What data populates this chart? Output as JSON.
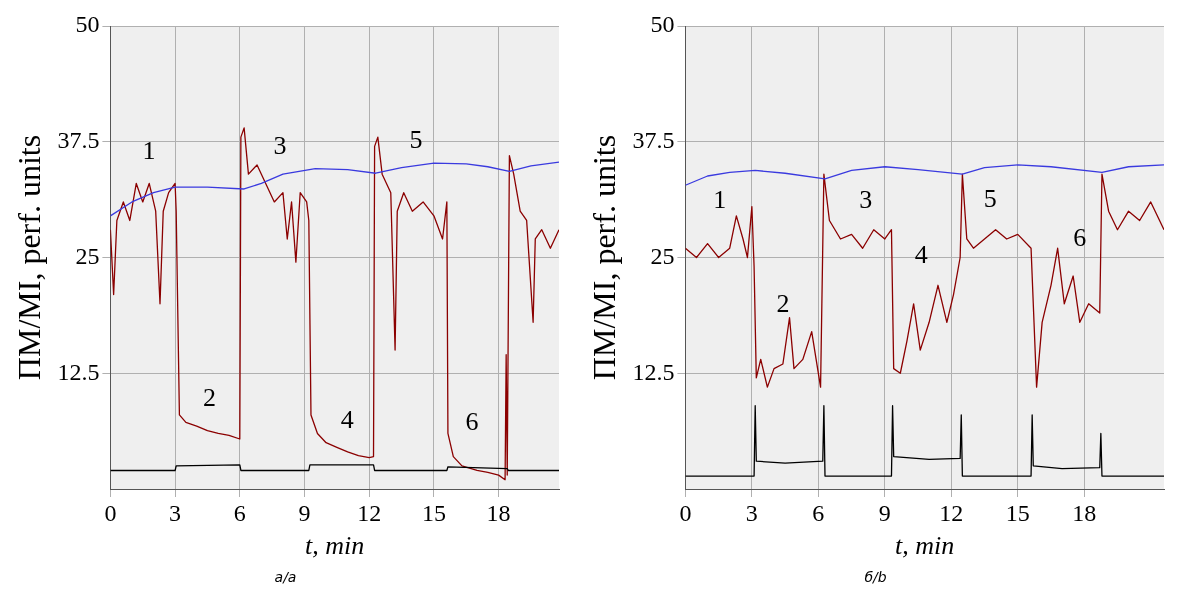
{
  "chart_data": [
    {
      "type": "line",
      "xlabel": "t, min",
      "ylabel": "ПМ/MI, perf. units",
      "xlim": [
        0,
        20.8
      ],
      "xticks": [
        0,
        3,
        6,
        9,
        12,
        15,
        18
      ],
      "ylim": [
        0,
        50
      ],
      "yticks": [
        12.5,
        25,
        37.5,
        50
      ],
      "grid": true,
      "legend": false,
      "series": [
        {
          "color": "#8b0000",
          "x": [
            0,
            0.15,
            0.3,
            0.6,
            0.9,
            1.2,
            1.5,
            1.8,
            2.1,
            2.3,
            2.45,
            2.7,
            3.0,
            3.05,
            3.2,
            3.5,
            4,
            4.5,
            5,
            5.5,
            6,
            6.05,
            6.2,
            6.4,
            6.8,
            7.2,
            7.6,
            8.0,
            8.2,
            8.4,
            8.6,
            8.8,
            9.1,
            9.2,
            9.3,
            9.6,
            10,
            10.5,
            11,
            11.5,
            12,
            12.2,
            12.25,
            12.4,
            12.6,
            13,
            13.2,
            13.3,
            13.6,
            14,
            14.5,
            15,
            15.4,
            15.6,
            15.65,
            15.9,
            16.3,
            17,
            17.5,
            18,
            18.3,
            18.35,
            18.4,
            18.5,
            18.7,
            19,
            19.3,
            19.6,
            19.7,
            20,
            20.4,
            20.8
          ],
          "values": [
            28,
            21,
            29,
            31,
            29,
            33,
            31,
            33,
            30,
            20,
            30,
            32,
            33,
            30,
            8,
            7.2,
            6.8,
            6.3,
            6,
            5.8,
            5.4,
            38,
            39,
            34,
            35,
            33,
            31,
            32,
            27,
            31,
            24.5,
            32,
            31,
            29,
            8,
            6,
            5,
            4.5,
            4,
            3.6,
            3.4,
            3.5,
            37,
            38,
            34,
            32,
            15,
            30,
            32,
            30,
            31,
            29.5,
            27,
            31,
            6,
            3.5,
            2.5,
            2,
            1.8,
            1.5,
            1,
            14.5,
            1.5,
            36,
            34,
            30,
            29,
            18,
            27,
            28,
            26,
            28
          ]
        },
        {
          "color": "#3a3adf",
          "x": [
            0,
            1,
            2,
            3,
            4.5,
            6.2,
            7,
            8,
            9.5,
            11,
            12.3,
            13.5,
            15,
            16.5,
            17.5,
            18.5,
            19.5,
            20.8
          ],
          "values": [
            29.5,
            31,
            32,
            32.6,
            32.6,
            32.4,
            33,
            34,
            34.6,
            34.5,
            34.1,
            34.7,
            35.2,
            35.1,
            34.8,
            34.3,
            34.9,
            35.3
          ]
        },
        {
          "color": "#000000",
          "x": [
            0,
            3,
            3.05,
            6,
            6.05,
            9.2,
            9.25,
            12.2,
            12.25,
            15.6,
            15.65,
            18.4,
            18.45,
            20.8
          ],
          "values": [
            2,
            2,
            2.5,
            2.6,
            2,
            2,
            2.6,
            2.6,
            2,
            2,
            2.4,
            2.2,
            2,
            2
          ]
        }
      ],
      "annotations": [
        "1",
        "2",
        "3",
        "4",
        "5",
        "6",
        "а/a"
      ]
    },
    {
      "type": "line",
      "xlabel": "t, min",
      "ylabel": "ПМ/MI, perf. units",
      "xlim": [
        0,
        21.6
      ],
      "xticks": [
        0,
        3,
        6,
        9,
        12,
        15,
        18
      ],
      "ylim": [
        0,
        50
      ],
      "yticks": [
        12.5,
        25,
        37.5,
        50
      ],
      "grid": true,
      "legend": false,
      "series": [
        {
          "color": "#8b0000",
          "x": [
            0,
            0.5,
            1,
            1.5,
            2,
            2.3,
            2.6,
            2.8,
            3.0,
            3.1,
            3.2,
            3.4,
            3.7,
            4,
            4.4,
            4.7,
            4.9,
            5.3,
            5.7,
            5.9,
            6.1,
            6.25,
            6.5,
            7,
            7.5,
            8,
            8.5,
            9,
            9.3,
            9.4,
            9.7,
            10,
            10.3,
            10.6,
            11,
            11.4,
            11.8,
            12.1,
            12.4,
            12.5,
            12.7,
            13,
            13.5,
            14,
            14.5,
            15,
            15.6,
            15.7,
            15.85,
            16.1,
            16.5,
            16.8,
            17.1,
            17.5,
            17.8,
            18.2,
            18.7,
            18.8,
            19.1,
            19.5,
            20,
            20.5,
            21,
            21.6
          ],
          "values": [
            26,
            25,
            26.5,
            25,
            26,
            29.5,
            27,
            25,
            30.5,
            24,
            12,
            14,
            11,
            13,
            13.5,
            18.5,
            13,
            14,
            17,
            14,
            11,
            34,
            29,
            27,
            27.5,
            26,
            28,
            27,
            28,
            13,
            12.5,
            16,
            20,
            15,
            18,
            22,
            18,
            21,
            25,
            34,
            27,
            26,
            27,
            28,
            27,
            27.5,
            26,
            20,
            11,
            18,
            22,
            26,
            20,
            23,
            18,
            20,
            19,
            34,
            30,
            28,
            30,
            29,
            31,
            28
          ]
        },
        {
          "color": "#3a3adf",
          "x": [
            0,
            1,
            2,
            3.15,
            4.5,
            6.3,
            7.5,
            9,
            10.5,
            12.5,
            13.5,
            15,
            16.5,
            18.8,
            20,
            21.6
          ],
          "values": [
            32.8,
            33.8,
            34.2,
            34.4,
            34.1,
            33.5,
            34.4,
            34.8,
            34.5,
            34,
            34.7,
            35,
            34.8,
            34.2,
            34.8,
            35
          ]
        },
        {
          "color": "#000000",
          "x": [
            0,
            3.1,
            3.15,
            3.2,
            4.5,
            6.2,
            6.25,
            6.3,
            9.3,
            9.35,
            9.4,
            11,
            12.4,
            12.45,
            12.5,
            15.6,
            15.65,
            15.7,
            17,
            18.7,
            18.75,
            18.8,
            21.6
          ],
          "values": [
            1.4,
            1.4,
            9,
            3,
            2.8,
            3,
            9,
            1.4,
            1.4,
            9,
            3.5,
            3.2,
            3.3,
            8,
            1.4,
            1.4,
            8,
            2.5,
            2.2,
            2.3,
            6,
            1.4,
            1.4
          ]
        }
      ],
      "annotations": [
        "1",
        "2",
        "3",
        "4",
        "5",
        "6",
        "б/b"
      ]
    }
  ]
}
